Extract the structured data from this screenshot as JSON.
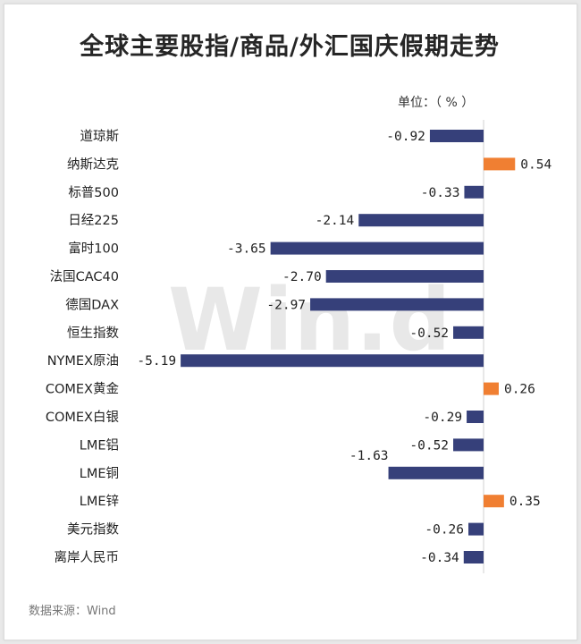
{
  "title": "全球主要股指/商品/外汇国庆假期走势",
  "unit_label": "单位：（ % ）",
  "source": "数据来源：Wind",
  "watermark": "Win.d",
  "colors": {
    "negative": "#36407a",
    "positive": "#f07f32"
  },
  "chart_data": {
    "type": "bar",
    "orientation": "horizontal",
    "categories": [
      "道琼斯",
      "纳斯达克",
      "标普500",
      "日经225",
      "富时100",
      "法国CAC40",
      "德国DAX",
      "恒生指数",
      "NYMEX原油",
      "COMEX黄金",
      "COMEX白银",
      "LME铝",
      "LME铜",
      "LME锌",
      "美元指数",
      "离岸人民币"
    ],
    "values": [
      -0.92,
      0.54,
      -0.33,
      -2.14,
      -3.65,
      -2.7,
      -2.97,
      -0.52,
      -5.19,
      0.26,
      -0.29,
      -0.52,
      -1.63,
      0.35,
      -0.26,
      -0.34
    ],
    "value_labels": [
      "-0.92",
      "0.54",
      "-0.33",
      "-2.14",
      "-3.65",
      "-2.70",
      "-2.97",
      "-0.52",
      "-5.19",
      "0.26",
      "-0.29",
      "-0.52",
      "-1.63",
      "0.35",
      "-0.26",
      "-0.34"
    ],
    "ylabel": "单位：（ % ）",
    "grid": false,
    "legend": "none"
  }
}
